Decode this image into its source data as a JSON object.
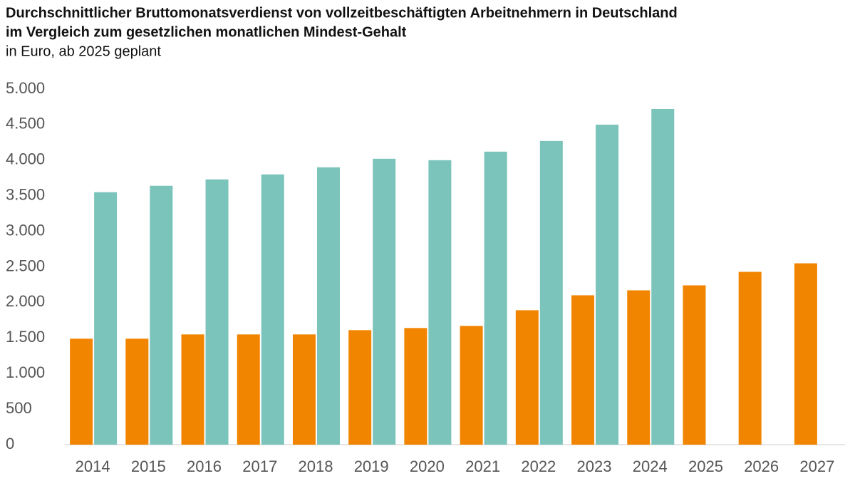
{
  "chart_data": {
    "type": "bar",
    "title": [
      "Durchschnittlicher Bruttomonatsverdienst von vollzeitbeschäftigten Arbeitnehmern in Deutschland",
      "im Vergleich zum gesetzlichen monatlichen Mindest-Gehalt"
    ],
    "subtitle": "in Euro, ab 2025 geplant",
    "categories": [
      "2014",
      "2015",
      "2016",
      "2017",
      "2018",
      "2019",
      "2020",
      "2021",
      "2022",
      "2023",
      "2024",
      "2025",
      "2026",
      "2027"
    ],
    "series": [
      {
        "color": "#f28500",
        "values": [
          1490,
          1490,
          1550,
          1550,
          1550,
          1610,
          1640,
          1670,
          1890,
          2100,
          2170,
          2240,
          2430,
          2550
        ]
      },
      {
        "color": "#7bc4bb",
        "values": [
          3550,
          3640,
          3730,
          3800,
          3900,
          4020,
          4000,
          4120,
          4270,
          4500,
          4720,
          null,
          null,
          null
        ]
      }
    ],
    "ylim": [
      0,
      5000
    ],
    "yticks": [
      0,
      500,
      {
        "value": 1000,
        "label": "1.000"
      },
      {
        "value": 1500,
        "label": "1.500"
      },
      {
        "value": 2000,
        "label": "2.000"
      },
      {
        "value": 2500,
        "label": "2.500"
      },
      {
        "value": 3000,
        "label": "3.000"
      },
      {
        "value": 3500,
        "label": "3.500"
      },
      {
        "value": 4000,
        "label": "4.000"
      },
      {
        "value": 4500,
        "label": "4.500"
      },
      {
        "value": 5000,
        "label": "5.000"
      }
    ],
    "grid": false
  }
}
